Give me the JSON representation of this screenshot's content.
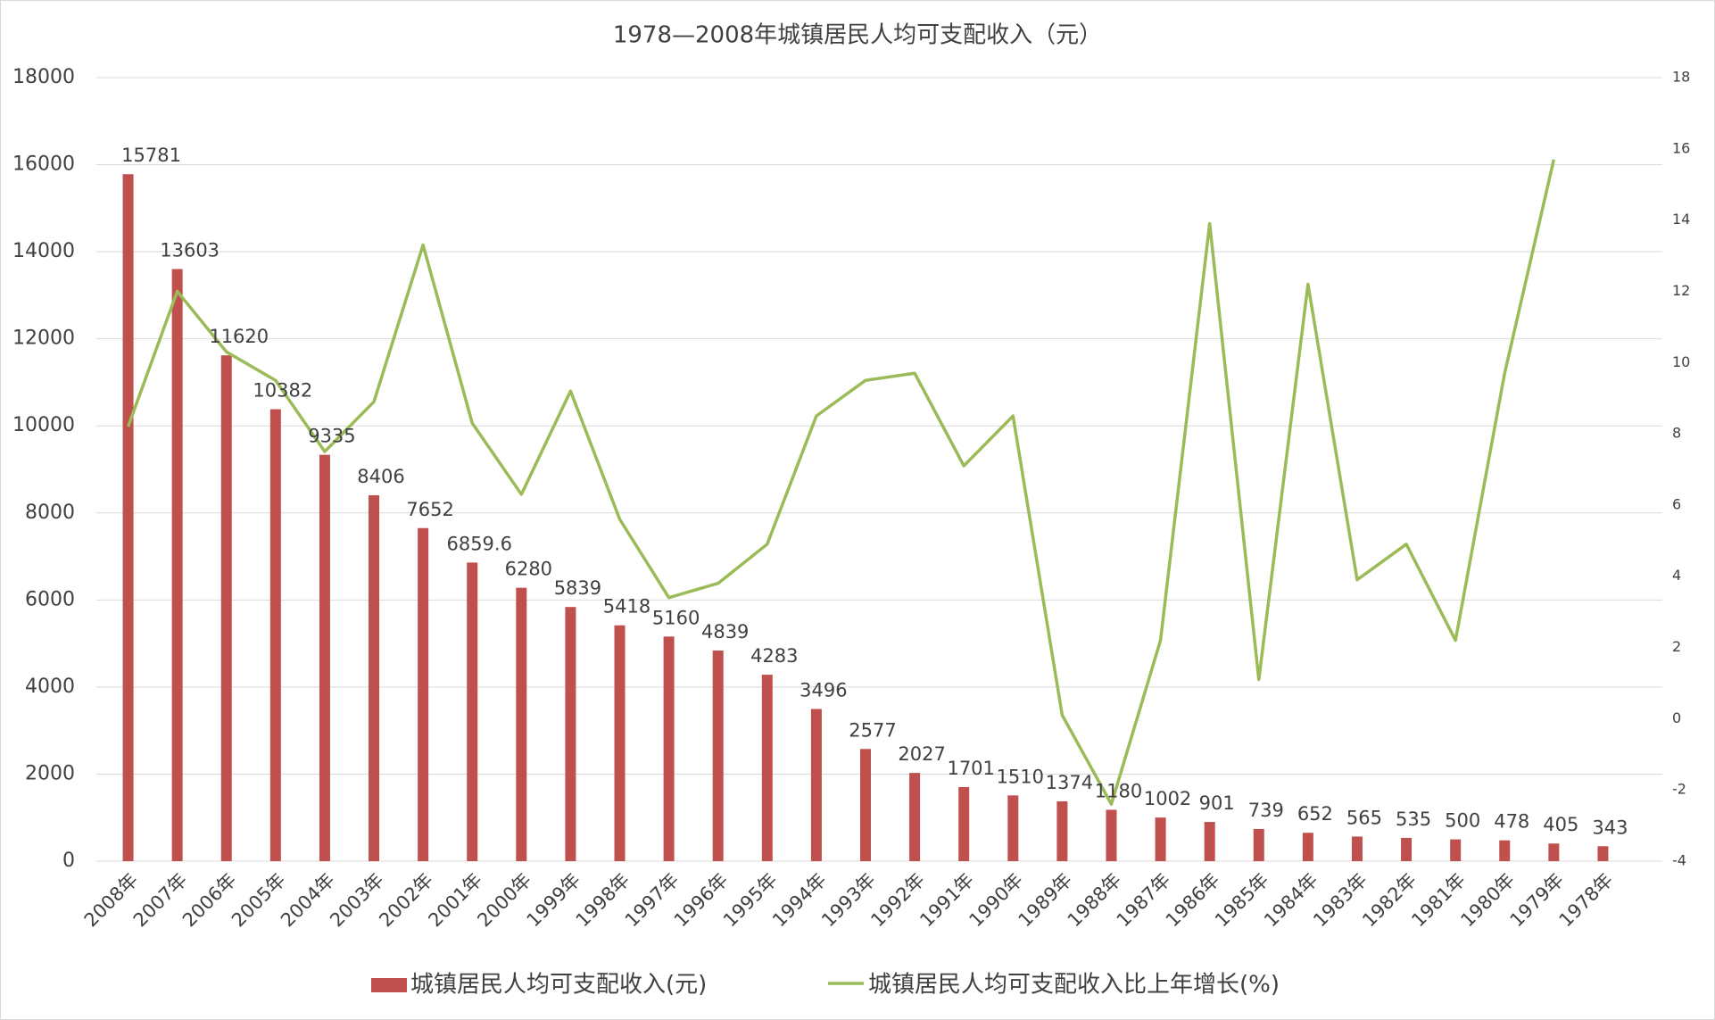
{
  "chart_data": {
    "type": "bar-line",
    "title": "1978—2008年城镇居民人均可支配收入（元）",
    "categories": [
      "2008年",
      "2007年",
      "2006年",
      "2005年",
      "2004年",
      "2003年",
      "2002年",
      "2001年",
      "2000年",
      "1999年",
      "1998年",
      "1997年",
      "1996年",
      "1995年",
      "1994年",
      "1993年",
      "1992年",
      "1991年",
      "1990年",
      "1989年",
      "1988年",
      "1987年",
      "1986年",
      "1985年",
      "1984年",
      "1983年",
      "1982年",
      "1981年",
      "1980年",
      "1979年",
      "1978年"
    ],
    "series": [
      {
        "name": "城镇居民人均可支配收入(元)",
        "color": "#c0504d",
        "values": [
          15781,
          13603,
          11620,
          10382,
          9335,
          8406,
          7652,
          6859.6,
          6280,
          5839,
          5418,
          5160,
          4839,
          4283,
          3496,
          2577,
          2027,
          1701,
          1510,
          1374,
          1180,
          1002,
          901,
          739,
          652,
          565,
          535,
          500,
          478,
          405,
          343
        ]
      },
      {
        "name": "城镇居民人均可支配收入比上年增长(%)",
        "color": "#9bbb59",
        "axis": "y2",
        "values": [
          8.2,
          12.0,
          10.3,
          9.5,
          7.5,
          8.9,
          13.3,
          8.3,
          6.3,
          9.2,
          5.6,
          3.4,
          3.8,
          4.9,
          8.5,
          9.5,
          9.7,
          7.1,
          8.5,
          0.1,
          -2.4,
          2.2,
          13.9,
          1.1,
          12.2,
          3.9,
          4.9,
          2.2,
          9.7,
          15.7,
          null
        ]
      }
    ],
    "ylim": [
      0,
      18000
    ],
    "yticks": [
      0,
      2000,
      4000,
      6000,
      8000,
      10000,
      12000,
      14000,
      16000,
      18000
    ],
    "y2lim": [
      -4,
      18
    ],
    "y2ticks": [
      -4,
      -2,
      0,
      2,
      4,
      6,
      8,
      10,
      12,
      14,
      16,
      18
    ],
    "grid": true,
    "legend": "bottom"
  }
}
